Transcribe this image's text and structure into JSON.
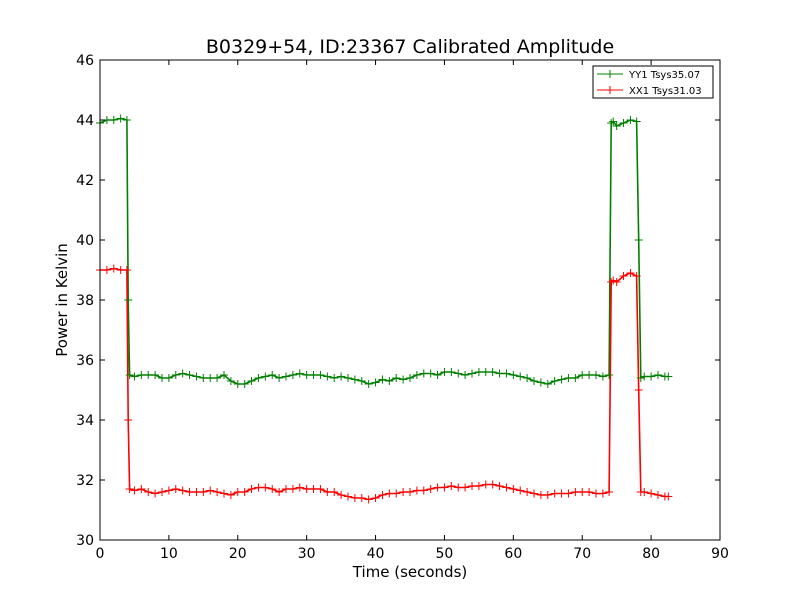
{
  "chart_data": {
    "type": "line",
    "title": "B0329+54, ID:23367 Calibrated Amplitude",
    "xlabel": "Time (seconds)",
    "ylabel": "Power in Kelvin",
    "xlim": [
      0,
      90
    ],
    "ylim": [
      30,
      46
    ],
    "xticks": [
      0,
      10,
      20,
      30,
      40,
      50,
      60,
      70,
      80,
      90
    ],
    "yticks": [
      30,
      32,
      34,
      36,
      38,
      40,
      42,
      44,
      46
    ],
    "grid": false,
    "legend_position": "top-right",
    "marker": "plus",
    "series": [
      {
        "name": "YY1 Tsys35.07",
        "color": "#008000",
        "x": [
          0,
          1,
          2,
          3,
          3.9,
          4.1,
          4.3,
          5,
          6,
          7,
          8,
          9,
          10,
          11,
          12,
          13,
          14,
          15,
          16,
          17,
          18,
          19,
          20,
          21,
          22,
          23,
          24,
          25,
          26,
          27,
          28,
          29,
          30,
          31,
          32,
          33,
          34,
          35,
          36,
          37,
          38,
          39,
          40,
          41,
          42,
          43,
          44,
          45,
          46,
          47,
          48,
          49,
          50,
          51,
          52,
          53,
          54,
          55,
          56,
          57,
          58,
          59,
          60,
          61,
          62,
          63,
          64,
          65,
          66,
          67,
          68,
          69,
          70,
          71,
          72,
          73,
          73.9,
          74.2,
          74.5,
          75,
          76,
          77,
          77.9,
          78.2,
          78.5,
          79,
          80,
          81,
          82,
          82.5
        ],
        "y": [
          43.9,
          44.0,
          44.0,
          44.05,
          44.0,
          38.0,
          35.5,
          35.45,
          35.5,
          35.5,
          35.5,
          35.4,
          35.4,
          35.5,
          35.55,
          35.5,
          35.45,
          35.4,
          35.4,
          35.4,
          35.5,
          35.3,
          35.2,
          35.2,
          35.3,
          35.4,
          35.45,
          35.5,
          35.4,
          35.45,
          35.5,
          35.55,
          35.5,
          35.5,
          35.5,
          35.45,
          35.4,
          35.45,
          35.4,
          35.35,
          35.3,
          35.2,
          35.25,
          35.35,
          35.3,
          35.4,
          35.35,
          35.4,
          35.5,
          35.55,
          35.55,
          35.5,
          35.6,
          35.6,
          35.55,
          35.5,
          35.55,
          35.6,
          35.6,
          35.6,
          35.55,
          35.55,
          35.5,
          35.45,
          35.4,
          35.3,
          35.25,
          35.2,
          35.3,
          35.35,
          35.4,
          35.4,
          35.5,
          35.5,
          35.5,
          35.45,
          35.5,
          43.9,
          43.95,
          43.8,
          43.9,
          44.0,
          43.95,
          40.0,
          35.4,
          35.45,
          35.45,
          35.5,
          35.45,
          35.45
        ]
      },
      {
        "name": "XX1 Tsys31.03",
        "color": "#ff0000",
        "x": [
          0,
          1,
          2,
          3,
          3.9,
          4.1,
          4.3,
          5,
          6,
          7,
          8,
          9,
          10,
          11,
          12,
          13,
          14,
          15,
          16,
          17,
          18,
          19,
          20,
          21,
          22,
          23,
          24,
          25,
          26,
          27,
          28,
          29,
          30,
          31,
          32,
          33,
          34,
          35,
          36,
          37,
          38,
          39,
          40,
          41,
          42,
          43,
          44,
          45,
          46,
          47,
          48,
          49,
          50,
          51,
          52,
          53,
          54,
          55,
          56,
          57,
          58,
          59,
          60,
          61,
          62,
          63,
          64,
          65,
          66,
          67,
          68,
          69,
          70,
          71,
          72,
          73,
          73.9,
          74.2,
          74.5,
          75,
          76,
          77,
          77.9,
          78.2,
          78.5,
          79,
          80,
          81,
          82,
          82.5
        ],
        "y": [
          39.0,
          39.0,
          39.05,
          39.0,
          39.0,
          34.0,
          31.7,
          31.65,
          31.7,
          31.6,
          31.55,
          31.6,
          31.65,
          31.7,
          31.65,
          31.6,
          31.6,
          31.6,
          31.65,
          31.6,
          31.55,
          31.5,
          31.6,
          31.6,
          31.7,
          31.75,
          31.75,
          31.7,
          31.6,
          31.7,
          31.7,
          31.75,
          31.7,
          31.7,
          31.7,
          31.6,
          31.6,
          31.5,
          31.45,
          31.4,
          31.4,
          31.35,
          31.4,
          31.5,
          31.55,
          31.55,
          31.6,
          31.6,
          31.65,
          31.65,
          31.7,
          31.75,
          31.75,
          31.8,
          31.75,
          31.75,
          31.8,
          31.8,
          31.85,
          31.85,
          31.8,
          31.75,
          31.7,
          31.65,
          31.6,
          31.55,
          31.5,
          31.5,
          31.55,
          31.55,
          31.55,
          31.6,
          31.6,
          31.6,
          31.55,
          31.55,
          31.6,
          38.6,
          38.65,
          38.6,
          38.8,
          38.9,
          38.8,
          35.0,
          31.6,
          31.6,
          31.55,
          31.5,
          31.45,
          31.45
        ]
      }
    ]
  }
}
